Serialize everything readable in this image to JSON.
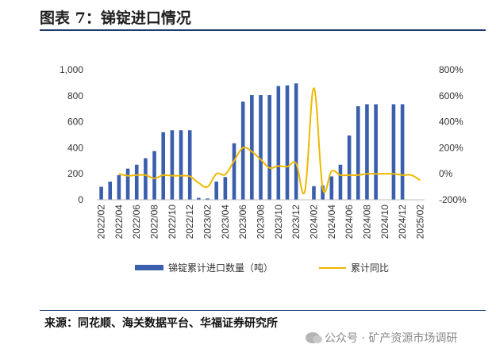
{
  "title": "图表 7：锑锭进口情况",
  "source": "来源：同花顺、海关数据平台、华福证券研究所",
  "watermark": "公众号 · 矿产资源市场调研",
  "chart_data": {
    "type": "bar",
    "x": [
      "2022/02",
      "2022/03",
      "2022/04",
      "2022/05",
      "2022/06",
      "2022/07",
      "2022/08",
      "2022/09",
      "2022/10",
      "2022/11",
      "2022/12",
      "2023/01",
      "2023/02",
      "2023/03",
      "2023/04",
      "2023/05",
      "2023/06",
      "2023/07",
      "2023/08",
      "2023/09",
      "2023/10",
      "2023/11",
      "2023/12",
      "2024/01",
      "2024/02",
      "2024/03",
      "2024/04",
      "2024/05",
      "2024/06",
      "2024/07",
      "2024/08",
      "2024/09",
      "2024/10",
      "2024/11",
      "2024/12",
      "2025/01",
      "2025/02"
    ],
    "x_tick_labels": [
      "2022/02",
      "2022/04",
      "2022/06",
      "2022/08",
      "2022/10",
      "2022/12",
      "2023/02",
      "2023/04",
      "2023/06",
      "2023/08",
      "2023/10",
      "2023/12",
      "2024/02",
      "2024/04",
      "2024/06",
      "2024/08",
      "2024/10",
      "2024/12",
      "2025/02"
    ],
    "series": [
      {
        "name": "锑锭累计进口数量（吨）",
        "axis": "left",
        "type": "bar",
        "color": "#3a5fad",
        "values": [
          100,
          140,
          190,
          240,
          270,
          320,
          375,
          520,
          535,
          535,
          535,
          15,
          10,
          140,
          175,
          435,
          755,
          805,
          805,
          805,
          875,
          880,
          895,
          null,
          105,
          110,
          180,
          270,
          495,
          720,
          735,
          735,
          null,
          735,
          735,
          null,
          null
        ]
      },
      {
        "name": "累计同比",
        "axis": "right",
        "type": "line",
        "color": "#f0b800",
        "values": [
          null,
          null,
          0,
          -15,
          -10,
          -10,
          -35,
          -10,
          -15,
          -15,
          -20,
          -70,
          -100,
          0,
          -5,
          100,
          200,
          170,
          110,
          45,
          60,
          55,
          80,
          -130,
          660,
          -110,
          20,
          -10,
          -10,
          -10,
          0,
          0,
          0,
          0,
          -10,
          -10,
          -50
        ]
      }
    ],
    "ylim_left": [
      0,
      1000
    ],
    "yticks_left": [
      "0",
      "200",
      "400",
      "600",
      "800",
      "1,000"
    ],
    "ylim_right": [
      -200,
      800
    ],
    "yticks_right": [
      "-200%",
      "0%",
      "200%",
      "400%",
      "600%",
      "800%"
    ],
    "grid": false,
    "legend_position": "bottom"
  }
}
